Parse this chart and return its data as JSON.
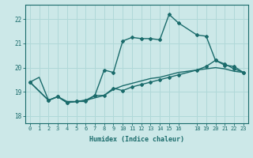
{
  "xlabel": "Humidex (Indice chaleur)",
  "xlim": [
    -0.5,
    23.5
  ],
  "ylim": [
    17.7,
    22.6
  ],
  "yticks": [
    18,
    19,
    20,
    21,
    22
  ],
  "xticks": [
    0,
    1,
    2,
    3,
    4,
    5,
    6,
    7,
    8,
    9,
    10,
    11,
    12,
    13,
    14,
    15,
    16,
    18,
    19,
    20,
    21,
    22,
    23
  ],
  "background_color": "#cce8e8",
  "grid_color": "#b0d8d8",
  "line_color": "#1a6b6b",
  "line1_x": [
    0,
    1,
    2,
    3,
    4,
    5,
    6,
    7,
    8,
    9,
    10,
    11,
    12,
    13,
    14,
    15,
    16,
    18,
    19,
    20,
    21,
    22,
    23
  ],
  "line1_y": [
    19.4,
    19.6,
    18.65,
    18.8,
    18.6,
    18.6,
    18.65,
    18.75,
    18.85,
    19.1,
    19.25,
    19.35,
    19.45,
    19.55,
    19.6,
    19.7,
    19.8,
    19.9,
    19.95,
    20.0,
    19.95,
    19.85,
    19.8
  ],
  "line2_x": [
    0,
    2,
    3,
    4,
    5,
    6,
    7,
    8,
    9,
    10,
    11,
    12,
    13,
    14,
    15,
    16,
    18,
    19,
    20,
    21,
    22,
    23
  ],
  "line2_y": [
    19.4,
    18.65,
    18.8,
    18.55,
    18.6,
    18.6,
    18.85,
    19.9,
    19.8,
    21.1,
    21.25,
    21.2,
    21.2,
    21.15,
    22.2,
    21.85,
    21.35,
    21.3,
    20.3,
    20.15,
    19.95,
    19.8
  ],
  "line3_x": [
    0,
    2,
    3,
    4,
    5,
    6,
    7,
    8,
    9,
    10,
    11,
    12,
    13,
    14,
    15,
    16,
    18,
    19,
    20,
    21,
    22,
    23
  ],
  "line3_y": [
    19.4,
    18.65,
    18.8,
    18.55,
    18.6,
    18.65,
    18.85,
    18.85,
    19.15,
    19.05,
    19.2,
    19.3,
    19.4,
    19.5,
    19.6,
    19.7,
    19.9,
    20.05,
    20.3,
    20.1,
    20.05,
    19.8
  ]
}
